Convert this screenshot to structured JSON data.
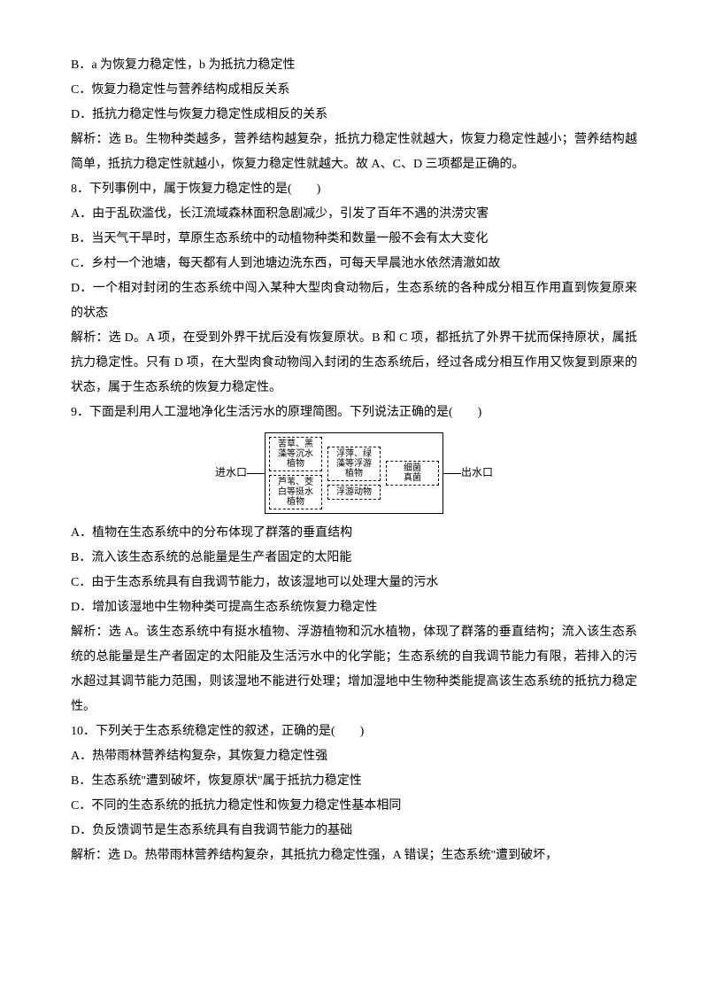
{
  "lines": {
    "l1": "B．a 为恢复力稳定性，b 为抵抗力稳定性",
    "l2": "C．恢复力稳定性与营养结构成相反关系",
    "l3": "D．抵抗力稳定性与恢复力稳定性成相反的关系",
    "l4": "解析：选 B。生物种类越多，营养结构越复杂，抵抗力稳定性就越大，恢复力稳定性越小；营养结构越简单，抵抗力稳定性就越小，恢复力稳定性就越大。故 A、C、D 三项都是正确的。",
    "l5": "8．下列事例中，属于恢复力稳定性的是(　　)",
    "l6": "A．由于乱砍滥伐，长江流域森林面积急剧减少，引发了百年不遇的洪涝灾害",
    "l7": "B．当天气干旱时，草原生态系统中的动植物种类和数量一般不会有太大变化",
    "l8": "C．乡村一个池塘，每天都有人到池塘边洗东西，可每天早晨池水依然清澈如故",
    "l9": "D．一个相对封闭的生态系统中闯入某种大型肉食动物后，生态系统的各种成分相互作用直到恢复原来的状态",
    "l10": "解析：选 D。A 项，在受到外界干扰后没有恢复原状。B 和 C 项，都抵抗了外界干扰而保持原状，属抵抗力稳定性。只有 D 项，在大型肉食动物闯入封闭的生态系统后，经过各成分相互作用又恢复到原来的状态，属于生态系统的恢复力稳定性。",
    "l11": "9．下面是利用人工湿地净化生活污水的原理简图。下列说法正确的是(　　)",
    "l12": "A．植物在生态系统中的分布体现了群落的垂直结构",
    "l13": "B．流入该生态系统的总能量是生产者固定的太阳能",
    "l14": "C．由于生态系统具有自我调节能力，故该湿地可以处理大量的污水",
    "l15": "D．增加该湿地中生物种类可提高生态系统恢复力稳定性",
    "l16": "解析：选 A。该生态系统中有挺水植物、浮游植物和沉水植物，体现了群落的垂直结构；流入该生态系统的总能量是生产者固定的太阳能及生活污水中的化学能；生态系统的自我调节能力有限，若排入的污水超过其调节能力范围，则该湿地不能进行处理；增加湿地中生物种类能提高该生态系统的抵抗力稳定性。",
    "l17": "10．下列关于生态系统稳定性的叙述，正确的是(　　)",
    "l18": "A．热带雨林营养结构复杂，其恢复力稳定性强",
    "l19": "B．生态系统\"遭到破坏，恢复原状\"属于抵抗力稳定性",
    "l20": "C．不同的生态系统的抵抗力稳定性和恢复力稳定性基本相同",
    "l21": "D．负反馈调节是生态系统具有自我调节能力的基础",
    "l22": "解析：选 D。热带雨林营养结构复杂，其抵抗力稳定性强，A 错误；生态系统\"遭到破坏，"
  },
  "diagram": {
    "inlet": "进水口",
    "outlet": "出水口",
    "cell1": "苦草、黑\n藻等沉水\n植物",
    "cell2": "芦苇、茭\n白等挺水\n植物",
    "cell3": "浮萍、绿\n藻等浮游\n植物",
    "cell4": "浮游动物",
    "cell5": "细菌\n真菌"
  }
}
